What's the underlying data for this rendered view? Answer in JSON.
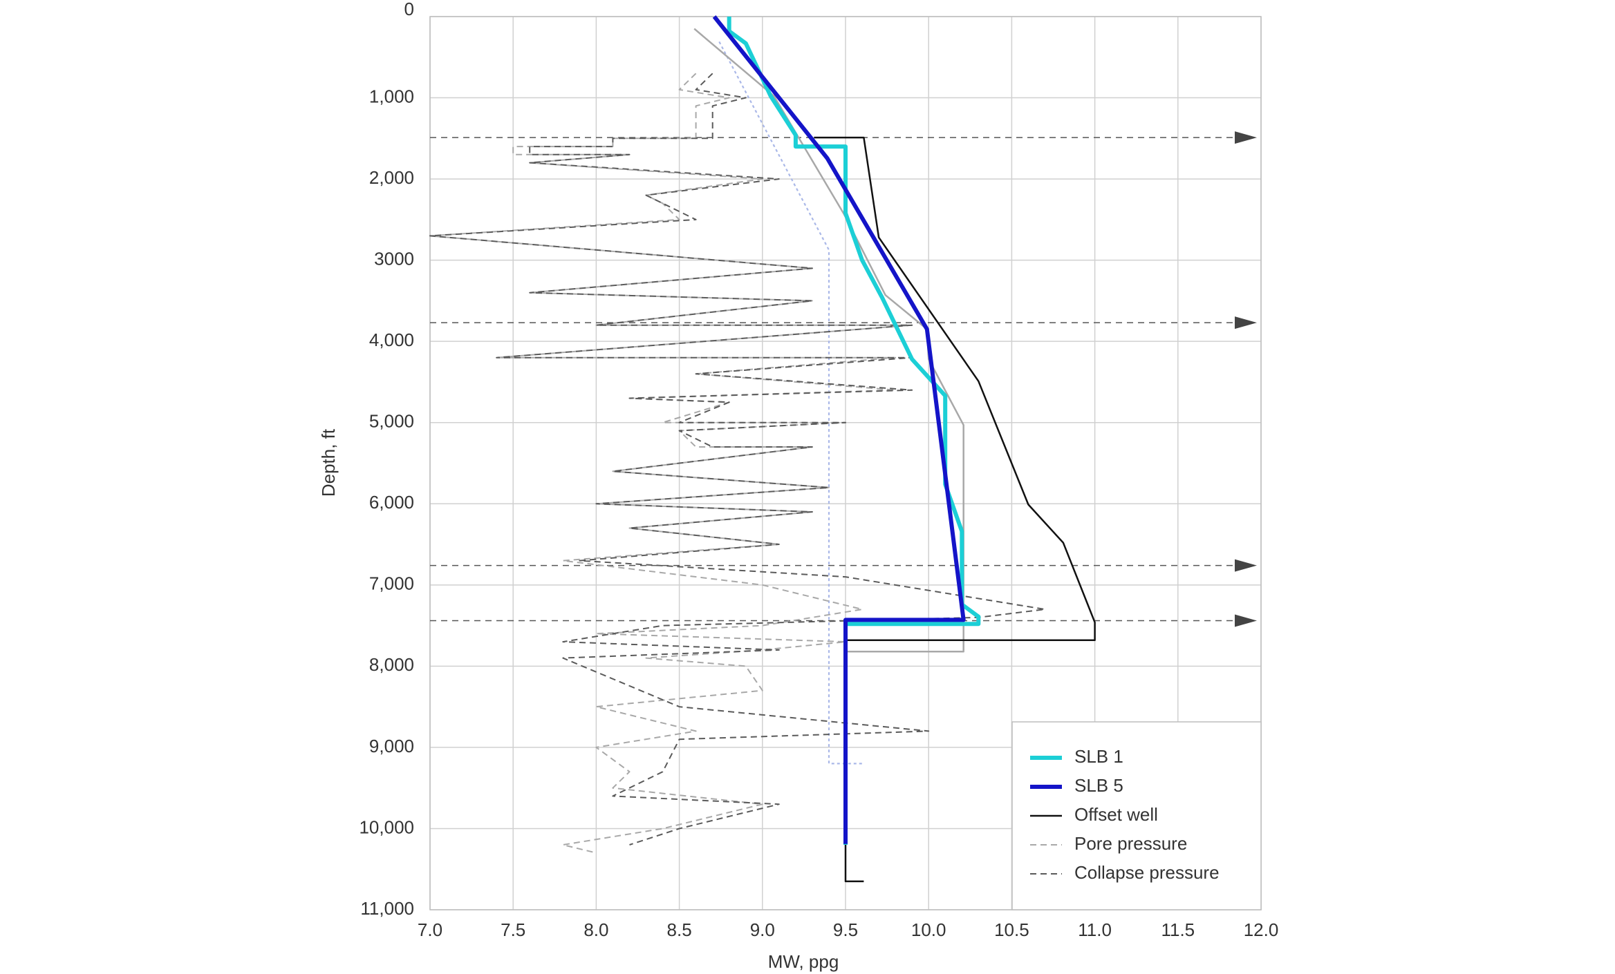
{
  "chart_data": {
    "type": "line",
    "xlabel": "MW, ppg",
    "ylabel": "Depth, ft",
    "xlim": [
      7.0,
      12.0
    ],
    "ylim": [
      0,
      11000
    ],
    "y_inverted": true,
    "grid": true,
    "legend": "lower right",
    "xticks": [
      {
        "value": 7.0,
        "label": "7.0"
      },
      7.5,
      {
        "value": 8.0,
        "label": "8.0"
      },
      8.5,
      {
        "value": 9.0,
        "label": "9.0"
      },
      9.5,
      {
        "value": 10.0,
        "label": "10.0"
      },
      10.5,
      {
        "value": 11.0,
        "label": "11.0"
      },
      11.5,
      {
        "value": 12.0,
        "label": "12.0"
      }
    ],
    "yticks": [
      0,
      {
        "value": 1000,
        "label": "1,000"
      },
      {
        "value": 2000,
        "label": "2,000"
      },
      3000,
      {
        "value": 4000,
        "label": "4,000"
      },
      {
        "value": 5000,
        "label": "5,000"
      },
      {
        "value": 6000,
        "label": "6,000"
      },
      {
        "value": 7000,
        "label": "7,000"
      },
      {
        "value": 8000,
        "label": "8,000"
      },
      {
        "value": 9000,
        "label": "9,000"
      },
      {
        "value": 10000,
        "label": "10,000"
      },
      {
        "value": 11000,
        "label": "11,000"
      }
    ],
    "reference_depths": [
      1490,
      3770,
      6760,
      7440
    ],
    "series": [
      {
        "color": "#aab8e8",
        "style": "dotted",
        "x": [
          8.74,
          9.4,
          9.4,
          9.6
        ],
        "y": [
          310,
          2875,
          9200,
          9200
        ]
      },
      {
        "name": "Pore pressure",
        "color": "#a8a8a8",
        "style": "dashed",
        "x": [
          8.6,
          8.5,
          8.8,
          8.6,
          8.6,
          8.1,
          8.1,
          7.5,
          7.5,
          8.2,
          7.6,
          9.0,
          8.3,
          8.4,
          8.5,
          7.0,
          9.3,
          7.6,
          9.3,
          8.0,
          9.9,
          7.4,
          9.8,
          8.6,
          9.8,
          8.2,
          8.8,
          8.4,
          9.5,
          8.5,
          8.6,
          9.3,
          8.1,
          9.4,
          8.0,
          9.3,
          8.2,
          9.1,
          7.8,
          9.0,
          9.6,
          9.0,
          8.0,
          9.5,
          9.0,
          8.3,
          8.9,
          9.0,
          8.0,
          8.6,
          8.0,
          8.2,
          8.1,
          9.0,
          8.4,
          7.8,
          8.0
        ],
        "y": [
          700,
          900,
          1000,
          1100,
          1500,
          1500,
          1600,
          1600,
          1700,
          1700,
          1800,
          2000,
          2200,
          2300,
          2500,
          2700,
          3100,
          3400,
          3500,
          3800,
          3800,
          4200,
          4200,
          4400,
          4600,
          4700,
          4750,
          5000,
          5000,
          5100,
          5300,
          5300,
          5600,
          5800,
          6000,
          6100,
          6300,
          6500,
          6700,
          7000,
          7300,
          7500,
          7600,
          7700,
          7800,
          7900,
          8000,
          8300,
          8500,
          8800,
          9000,
          9300,
          9500,
          9700,
          10000,
          10200,
          10300
        ]
      },
      {
        "name": "Collapse pressure",
        "color": "#5a5a5a",
        "style": "dashed",
        "x": [
          8.7,
          8.6,
          8.9,
          8.7,
          8.7,
          8.1,
          8.1,
          7.6,
          7.6,
          8.2,
          7.6,
          9.1,
          8.3,
          8.4,
          8.6,
          7.0,
          9.3,
          7.6,
          9.3,
          8.0,
          9.9,
          7.4,
          9.9,
          8.6,
          9.9,
          8.2,
          8.8,
          8.5,
          9.5,
          8.5,
          8.7,
          9.3,
          8.1,
          9.4,
          8.0,
          9.3,
          8.2,
          9.1,
          7.9,
          9.5,
          10.7,
          10.3,
          8.4,
          7.8,
          9.1,
          7.8,
          8.5,
          10.0,
          8.5,
          8.4,
          8.1,
          9.1,
          8.5,
          8.2
        ],
        "y": [
          700,
          900,
          1000,
          1100,
          1500,
          1500,
          1600,
          1600,
          1700,
          1700,
          1800,
          2000,
          2200,
          2300,
          2500,
          2700,
          3100,
          3400,
          3500,
          3800,
          3800,
          4200,
          4200,
          4400,
          4600,
          4700,
          4750,
          5000,
          5000,
          5100,
          5300,
          5300,
          5600,
          5800,
          6000,
          6100,
          6300,
          6500,
          6700,
          6900,
          7300,
          7400,
          7500,
          7700,
          7800,
          7900,
          8500,
          8800,
          8900,
          9300,
          9600,
          9700,
          10000,
          10200
        ]
      },
      {
        "color": "#a8a8a8",
        "style": "solid",
        "x": [
          8.59,
          9.07,
          9.49,
          9.74,
          9.99,
          10.0,
          10.21,
          10.21,
          9.5
        ],
        "y": [
          150,
          980,
          2430,
          3430,
          3850,
          4220,
          5030,
          7820,
          7820
        ]
      },
      {
        "name": "Offset well",
        "color": "#111111",
        "style": "solid",
        "x": [
          9.31,
          9.61,
          9.7,
          10.3,
          10.6,
          10.81,
          11.0,
          11.0,
          9.5,
          9.5,
          9.61
        ],
        "y": [
          1490,
          1490,
          2720,
          4490,
          6010,
          6480,
          7460,
          7680,
          7680,
          10650,
          10650
        ]
      },
      {
        "name": "SLB 1",
        "color": "#1ccfd6",
        "style": "thick",
        "x": [
          8.8,
          8.8,
          8.9,
          9.05,
          9.2,
          9.2,
          9.5,
          9.5,
          9.6,
          9.72,
          9.9,
          10.1,
          10.1,
          10.1,
          10.2,
          10.2,
          10.3,
          10.3,
          9.5,
          9.5
        ],
        "y": [
          0,
          180,
          330,
          980,
          1460,
          1600,
          1600,
          2420,
          3000,
          3460,
          4220,
          4670,
          4900,
          5760,
          6340,
          7240,
          7390,
          7480,
          7480,
          10200
        ]
      },
      {
        "name": "SLB 5",
        "color": "#1414c8",
        "style": "thick",
        "x": [
          8.71,
          9.39,
          9.99,
          10.21,
          9.5,
          9.5
        ],
        "y": [
          0,
          1745,
          3850,
          7430,
          7430,
          10190
        ]
      }
    ]
  }
}
